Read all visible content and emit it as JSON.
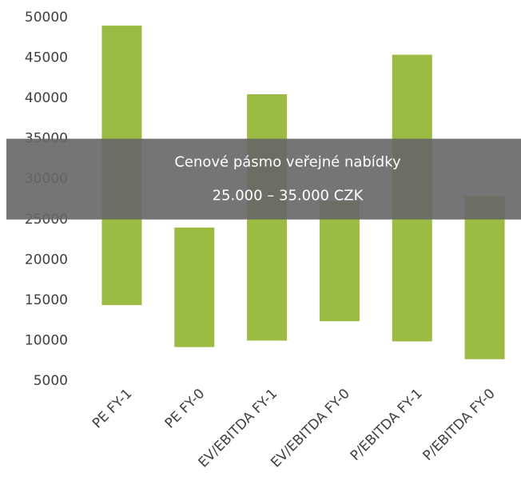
{
  "chart_data": {
    "type": "floating-bar",
    "categories": [
      "PE FY-1",
      "PE FY-0",
      "EV/EBITDA FY-1",
      "EV/EBITDA FY-0",
      "P/EBITDA FY-1",
      "P/EBITDA FY-0"
    ],
    "low": [
      14400,
      9200,
      10000,
      12400,
      9900,
      7700
    ],
    "high": [
      49000,
      24000,
      40500,
      27300,
      45400,
      27900
    ],
    "color": "#9bbb42",
    "ylim": [
      5000,
      50000
    ],
    "yticks": [
      5000,
      10000,
      15000,
      20000,
      25000,
      30000,
      35000,
      40000,
      45000,
      50000
    ],
    "band": {
      "range": [
        25000,
        35000
      ],
      "color": "#666666",
      "lines": [
        "Cenové pásmo veřejné nabídky",
        "25.000 – 35.000 CZK"
      ]
    }
  }
}
